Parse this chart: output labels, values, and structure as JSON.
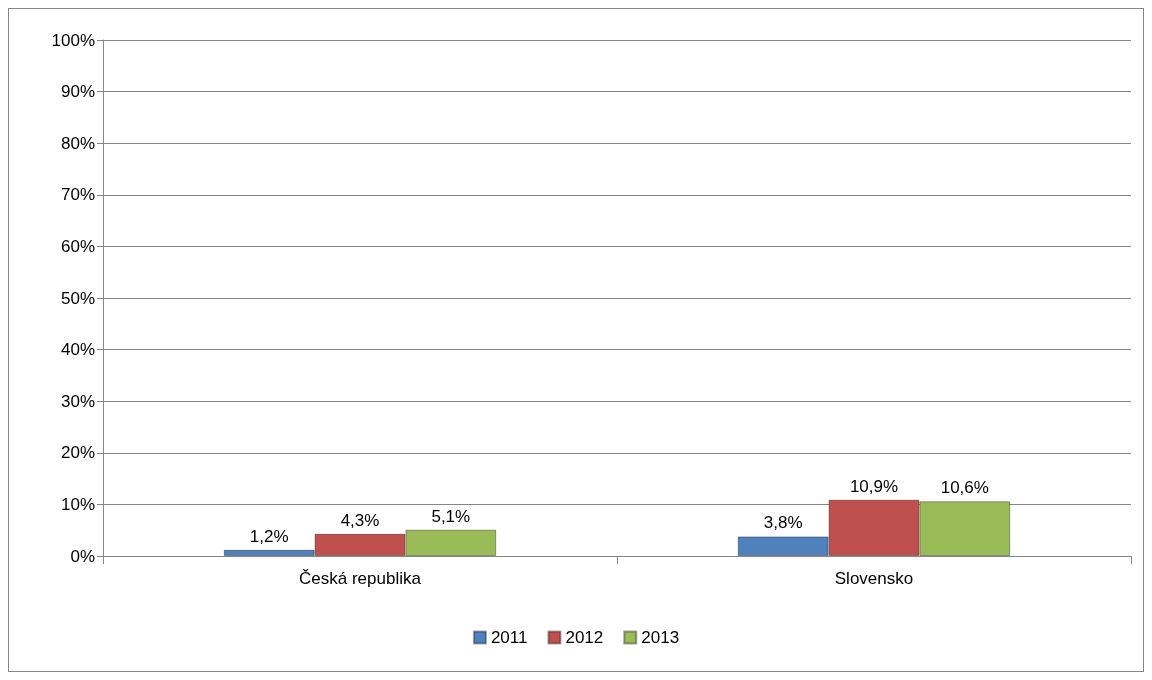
{
  "chart_data": {
    "type": "bar",
    "categories": [
      "Česká republika",
      "Slovensko"
    ],
    "series": [
      {
        "name": "2011",
        "color": "#4f81bd",
        "values": [
          1.2,
          3.8
        ],
        "value_labels": [
          "1,2%",
          "3,8%"
        ]
      },
      {
        "name": "2012",
        "color": "#c0504d",
        "values": [
          4.3,
          10.9
        ],
        "value_labels": [
          "4,3%",
          "10,9%"
        ]
      },
      {
        "name": "2013",
        "color": "#9bbb59",
        "values": [
          5.1,
          10.6
        ],
        "value_labels": [
          "5,1%",
          "10,6%"
        ]
      }
    ],
    "ylim": [
      0,
      100
    ],
    "yticks": [
      {
        "value": 0,
        "label": "0%"
      },
      {
        "value": 10,
        "label": "10%"
      },
      {
        "value": 20,
        "label": "20%"
      },
      {
        "value": 30,
        "label": "30%"
      },
      {
        "value": 40,
        "label": "40%"
      },
      {
        "value": 50,
        "label": "50%"
      },
      {
        "value": 60,
        "label": "60%"
      },
      {
        "value": 70,
        "label": "70%"
      },
      {
        "value": 80,
        "label": "80%"
      },
      {
        "value": 90,
        "label": "90%"
      },
      {
        "value": 100,
        "label": "100%"
      }
    ],
    "grid": "y",
    "legend": "bottom"
  }
}
